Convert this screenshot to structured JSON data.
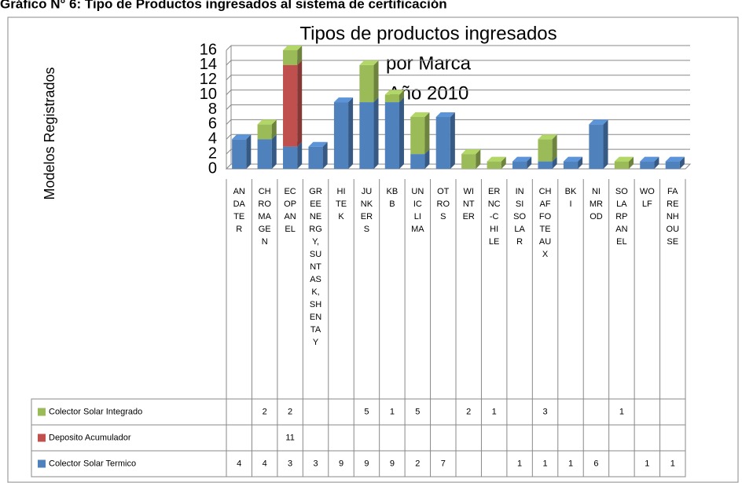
{
  "header": "Gráfico N° 6: Tipo de Productos ingresados al sistema de certificación",
  "chart_data": {
    "type": "bar",
    "stacked": true,
    "title": [
      "Tipos de productos ingresados",
      "por Marca",
      "Año 2010"
    ],
    "y_label": "Modelos Registrados",
    "categories": [
      "ANDATER",
      "CHROMAGEN",
      "ECOPANEL",
      "GREENERGY,SUNTASK,SHENTAY",
      "HITEK",
      "JUNKERS",
      "KBB",
      "UNICLIMA",
      "OTROS",
      "WINTER",
      "ERNC-CHILE",
      "INSISOLAR",
      "CHAFFOTEAUX",
      "BKI",
      "NIMROD",
      "SOLARPANEL",
      "WOLF",
      "FARENHOUSE"
    ],
    "series": [
      {
        "name": "Colector Solar Integrado",
        "color": "#9bbb59",
        "values": [
          null,
          2,
          2,
          null,
          null,
          5,
          1,
          5,
          null,
          2,
          1,
          null,
          3,
          null,
          null,
          1,
          null,
          null
        ]
      },
      {
        "name": "Deposito Acumulador",
        "color": "#c0504d",
        "values": [
          null,
          null,
          11,
          null,
          null,
          null,
          null,
          null,
          null,
          null,
          null,
          null,
          null,
          null,
          null,
          null,
          null,
          null
        ]
      },
      {
        "name": "Colector Solar Termico",
        "color": "#4f81bd",
        "values": [
          4,
          4,
          3,
          3,
          9,
          9,
          9,
          2,
          7,
          null,
          null,
          1,
          1,
          1,
          6,
          null,
          1,
          1
        ]
      }
    ],
    "ylim": [
      0,
      16
    ],
    "yticks": [
      0,
      2,
      4,
      6,
      8,
      10,
      12,
      14,
      16
    ],
    "grid": true
  }
}
